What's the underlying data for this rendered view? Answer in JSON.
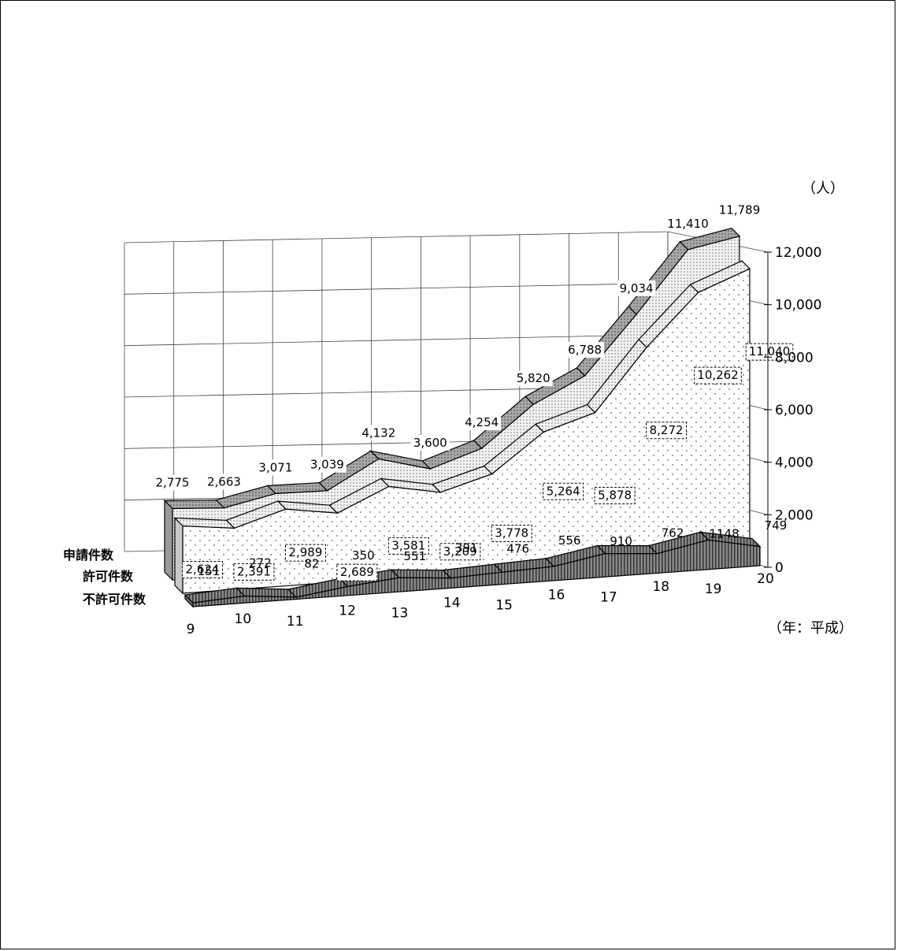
{
  "chart_data": {
    "type": "area",
    "style": "3d-ribbon",
    "categories": [
      "9",
      "10",
      "11",
      "12",
      "13",
      "14",
      "15",
      "16",
      "17",
      "18",
      "19",
      "20"
    ],
    "series": [
      {
        "name": "申請件数",
        "values": [
          2775,
          2663,
          3071,
          3039,
          4132,
          3600,
          4254,
          5820,
          6788,
          9034,
          11410,
          11789
        ]
      },
      {
        "name": "許可件数",
        "values": [
          2624,
          2391,
          2989,
          2689,
          3581,
          3209,
          3778,
          5264,
          5878,
          8272,
          10262,
          11040
        ]
      },
      {
        "name": "不許可件数",
        "values": [
          151,
          272,
          82,
          350,
          551,
          391,
          476,
          556,
          910,
          762,
          1148,
          749
        ]
      }
    ],
    "y_ticks": [
      "0",
      "2,000",
      "4,000",
      "6,000",
      "8,000",
      "10,000",
      "12,000"
    ],
    "ylim": [
      0,
      12000
    ],
    "y_unit": "（人）",
    "x_unit": "（年：平成）",
    "colors": {
      "series1": "#9a9a9a",
      "series2": "#d4d4d4",
      "series3": "#7a7a7a",
      "floor": "#ffffff"
    }
  }
}
